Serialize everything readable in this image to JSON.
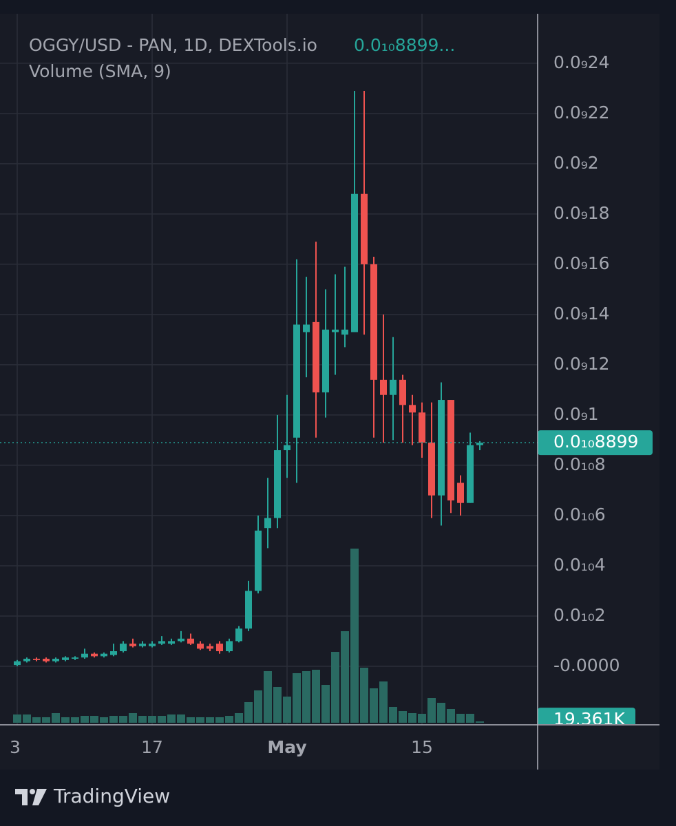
{
  "chart_data": {
    "type": "candlestick",
    "title": "OGGY/USD - PAN, 1D, DEXTools.io",
    "title_price": "0.0₁₀8899...",
    "subtitle": "Volume (SMA, 9)",
    "categories": [
      "3",
      null,
      null,
      null,
      null,
      null,
      null,
      null,
      null,
      null,
      null,
      null,
      null,
      null,
      "17",
      null,
      null,
      null,
      null,
      null,
      null,
      null,
      null,
      null,
      null,
      null,
      null,
      null,
      "May",
      null,
      null,
      null,
      null,
      null,
      null,
      null,
      null,
      null,
      null,
      null,
      null,
      null,
      "15",
      null,
      null,
      null,
      null,
      null,
      null
    ],
    "open": [
      5e-13,
      2e-12,
      3e-12,
      3e-12,
      2e-12,
      2.5e-12,
      3e-12,
      3.5e-12,
      5e-12,
      4e-12,
      4.5e-12,
      6e-12,
      9e-12,
      8e-12,
      8e-12,
      9e-12,
      9e-12,
      1e-11,
      1.1e-11,
      9e-12,
      8e-12,
      9e-12,
      6e-12,
      1e-11,
      1.5e-11,
      3e-11,
      5.5e-11,
      5.9e-11,
      8.6e-11,
      9.1e-11,
      1.33e-10,
      1.37e-10,
      1.09e-10,
      1.33e-10,
      1.32e-10,
      1.33e-10,
      1.88e-10,
      1.6e-10,
      1.14e-10,
      1.08e-10,
      1.14e-10,
      1.04e-10,
      1.01e-10,
      8.9e-11,
      6.8e-11,
      1.06e-10,
      7.3e-11,
      6.5e-11,
      8.8e-11
    ],
    "high": [
      2.5e-12,
      3.5e-12,
      3.5e-12,
      3.5e-12,
      3.5e-12,
      4e-12,
      4e-12,
      7e-12,
      5.5e-12,
      5.5e-12,
      9e-12,
      1e-11,
      1.1e-11,
      1e-11,
      1e-11,
      1.2e-11,
      1.1e-11,
      1.4e-11,
      1.3e-11,
      1e-11,
      9e-12,
      1e-11,
      1.1e-11,
      1.6e-11,
      3.4e-11,
      6e-11,
      7.5e-11,
      1e-10,
      1.08e-10,
      1.62e-10,
      1.55e-10,
      1.69e-10,
      1.5e-10,
      1.56e-10,
      1.59e-10,
      2.29e-10,
      2.29e-10,
      1.63e-10,
      1.4e-10,
      1.31e-10,
      1.16e-10,
      1.08e-10,
      1.05e-10,
      1.05e-10,
      1.13e-10,
      1.06e-10,
      7.6e-11,
      9.3e-11,
      8.96e-11
    ],
    "low": [
      0.0,
      1.5e-12,
      2e-12,
      1.5e-12,
      1.5e-12,
      2e-12,
      2.5e-12,
      3e-12,
      3.5e-12,
      3.5e-12,
      4e-12,
      5.5e-12,
      7.5e-12,
      7.5e-12,
      7.5e-12,
      8.5e-12,
      8.5e-12,
      9.5e-12,
      8.5e-12,
      6.5e-12,
      6e-12,
      5e-12,
      5.5e-12,
      9.5e-12,
      1.4e-11,
      2.9e-11,
      4.7e-11,
      5.5e-11,
      7.5e-11,
      7.3e-11,
      1.15e-10,
      9.1e-11,
      9.9e-11,
      1.16e-10,
      1.27e-10,
      1.33e-10,
      1.32e-10,
      9.1e-11,
      8.9e-11,
      9e-11,
      8.9e-11,
      8.8e-11,
      8.3e-11,
      5.9e-11,
      5.6e-11,
      6.1e-11,
      6e-11,
      6.5e-11,
      8.6e-11
    ],
    "close": [
      2e-12,
      3e-12,
      2.5e-12,
      2e-12,
      3e-12,
      3.5e-12,
      3.5e-12,
      5e-12,
      4e-12,
      5e-12,
      6e-12,
      9e-12,
      8e-12,
      9e-12,
      9e-12,
      1e-11,
      1e-11,
      1.1e-11,
      9e-12,
      7e-12,
      7e-12,
      6e-12,
      1e-11,
      1.5e-11,
      3e-11,
      5.4e-11,
      5.9e-11,
      8.6e-11,
      8.8e-11,
      1.36e-10,
      1.36e-10,
      1.09e-10,
      1.34e-10,
      1.34e-10,
      1.34e-10,
      1.88e-10,
      1.6e-10,
      1.14e-10,
      1.08e-10,
      1.14e-10,
      1.04e-10,
      1.01e-10,
      8.9e-11,
      6.8e-11,
      1.06e-10,
      6.6e-11,
      6.5e-11,
      8.8e-11,
      8.899e-11
    ],
    "volume": [
      120000,
      120000,
      80000,
      80000,
      140000,
      80000,
      80000,
      100000,
      100000,
      80000,
      100000,
      100000,
      140000,
      100000,
      100000,
      100000,
      120000,
      120000,
      80000,
      80000,
      80000,
      80000,
      100000,
      140000,
      300000,
      470000,
      750000,
      520000,
      380000,
      720000,
      750000,
      770000,
      550000,
      1030000,
      1330000,
      2530000,
      800000,
      500000,
      600000,
      230000,
      170000,
      140000,
      130000,
      360000,
      290000,
      200000,
      130000,
      130000,
      19361
    ],
    "up_color": "#26a69a",
    "down_color": "#ef5350",
    "volume_color": "#2a6a62",
    "ylim": [
      -2.33e-11,
      2.597e-10
    ],
    "yticks": [
      {
        "value": 0,
        "label": "-0.0000"
      },
      {
        "value": 2e-11,
        "label": "0.0₁₀2"
      },
      {
        "value": 4e-11,
        "label": "0.0₁₀4"
      },
      {
        "value": 6e-11,
        "label": "0.0₁₀6"
      },
      {
        "value": 8e-11,
        "label": "0.0₁₀8"
      },
      {
        "value": 1e-10,
        "label": "0.0₉1"
      },
      {
        "value": 1.2e-10,
        "label": "0.0₉12"
      },
      {
        "value": 1.4e-10,
        "label": "0.0₉14"
      },
      {
        "value": 1.6e-10,
        "label": "0.0₉16"
      },
      {
        "value": 1.8e-10,
        "label": "0.0₉18"
      },
      {
        "value": 2e-10,
        "label": "0.0₉2"
      },
      {
        "value": 2.2e-10,
        "label": "0.0₉22"
      },
      {
        "value": 2.4e-10,
        "label": "0.0₉24"
      }
    ],
    "y2lim": [
      0,
      10300000
    ],
    "grid": true,
    "price_label": {
      "value": 8.899e-11,
      "label": "0.0₁₀8899"
    },
    "volume_label": {
      "value": 19361,
      "label": "19.361K"
    }
  },
  "footer": {
    "brand": "TradingView"
  }
}
